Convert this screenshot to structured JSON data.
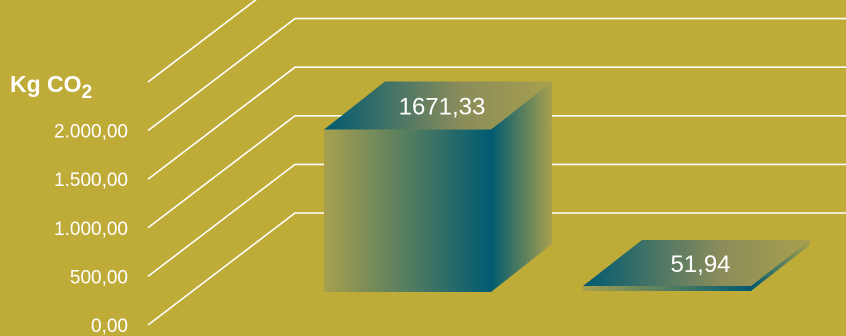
{
  "chart_data": {
    "type": "bar",
    "categories": [
      "",
      ""
    ],
    "values": [
      1671.33,
      51.94
    ],
    "value_labels": [
      "1671,33",
      "51,94"
    ],
    "title": "",
    "xlabel": "",
    "ylabel": "Kg CO",
    "ylabel_subscript": "2",
    "ylim": [
      0,
      2500
    ],
    "yticks": [
      0,
      500,
      1000,
      1500,
      2000
    ],
    "ytick_labels": [
      "0,00",
      "500,00",
      "1.000,00",
      "1.500,00",
      "2.000,00"
    ],
    "grid": true,
    "style": "3d-box",
    "colors": {
      "background": "#bfab37",
      "bar_light": "#a8a04e",
      "bar_dark": "#005a72",
      "text": "#ffffff",
      "grid": "#ffffff"
    }
  }
}
